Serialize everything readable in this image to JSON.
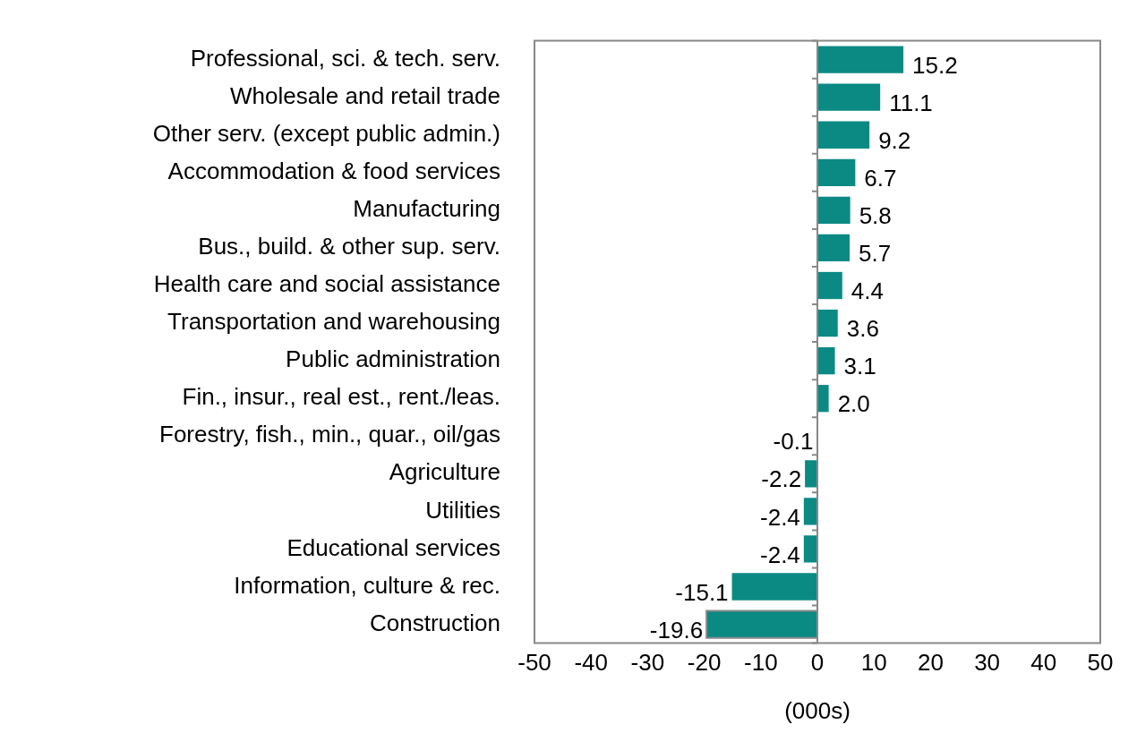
{
  "chart_data": {
    "type": "bar",
    "orientation": "horizontal",
    "xlabel": "(000s)",
    "categories": [
      "Professional, sci. & tech. serv.",
      "Wholesale and retail trade",
      "Other serv. (except public admin.)",
      "Accommodation & food services",
      "Manufacturing",
      "Bus., build. & other sup. serv.",
      "Health care and social assistance",
      "Transportation and warehousing",
      "Public administration",
      "Fin., insur., real est., rent./leas.",
      "Forestry, fish., min., quar., oil/gas",
      "Agriculture",
      "Utilities",
      "Educational services",
      "Information, culture & rec.",
      "Construction"
    ],
    "values": [
      15.2,
      11.1,
      9.2,
      6.7,
      5.8,
      5.7,
      4.4,
      3.6,
      3.1,
      2.0,
      -0.1,
      -2.2,
      -2.4,
      -2.4,
      -15.1,
      -19.6
    ],
    "value_labels": [
      "15.2",
      "11.1",
      "9.2",
      "6.7",
      "5.8",
      "5.7",
      "4.4",
      "3.6",
      "3.1",
      "2.0",
      "-0.1",
      "-2.2",
      "-2.4",
      "-2.4",
      "-15.1",
      "-19.6"
    ],
    "color": "#0b8a84",
    "xlim": [
      -50,
      50
    ],
    "xticks": [
      -50,
      -40,
      -30,
      -20,
      -10,
      0,
      10,
      20,
      30,
      40,
      50
    ],
    "ref_lines": [
      {
        "axis": "x",
        "value": 0,
        "color": "#888888"
      }
    ],
    "grid": false,
    "legend": false
  }
}
